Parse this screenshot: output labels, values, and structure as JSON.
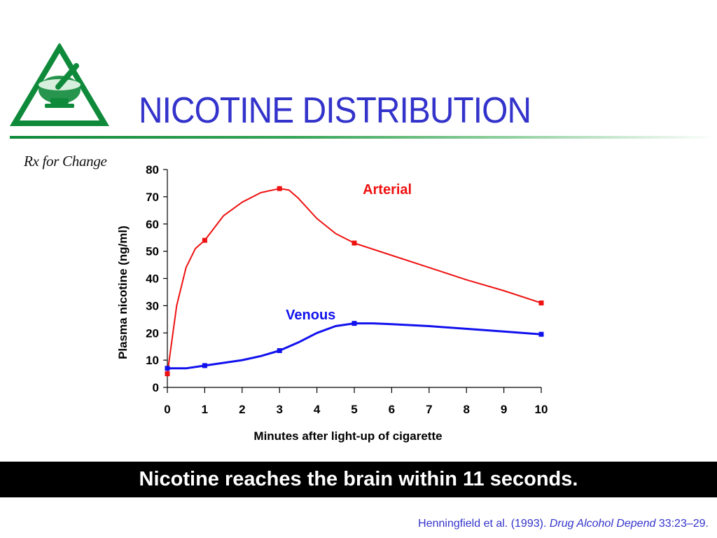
{
  "slide": {
    "title": "NICOTINE DISTRIBUTION",
    "logo_text": "Rx for Change",
    "banner": "Nicotine reaches the brain within 11 seconds.",
    "citation": {
      "authors": "Henningfield et al. (1993).",
      "journal": "Drug Alcohol Depend",
      "pages": "33:23–29."
    },
    "colors": {
      "title": "#3333cc",
      "rule": "#0f8a3a",
      "banner_bg": "#000000"
    }
  },
  "chart_data": {
    "type": "line",
    "xlabel": "Minutes after light-up of cigarette",
    "ylabel": "Plasma nicotine (ng/ml)",
    "xlim": [
      0,
      10
    ],
    "ylim": [
      0,
      80
    ],
    "xticks": [
      0,
      1,
      2,
      3,
      4,
      5,
      6,
      7,
      8,
      9,
      10
    ],
    "yticks": [
      0,
      10,
      20,
      30,
      40,
      50,
      60,
      70,
      80
    ],
    "grid": false,
    "legend": "inline labels",
    "series": [
      {
        "name": "Arterial",
        "color": "#ee1111",
        "x": [
          0,
          1,
          3,
          5,
          10
        ],
        "y": [
          5,
          54,
          73,
          53,
          31
        ],
        "curve_x": [
          0,
          0.25,
          0.5,
          0.75,
          1,
          1.5,
          2,
          2.5,
          3,
          3.25,
          3.5,
          4,
          4.5,
          5,
          6,
          7,
          8,
          9,
          10
        ],
        "curve_y": [
          5,
          30,
          44,
          51,
          54,
          63,
          68,
          71.5,
          73,
          72.5,
          69.5,
          62,
          56.5,
          53,
          48.5,
          44,
          39.5,
          35.5,
          31
        ]
      },
      {
        "name": "Venous",
        "color": "#1111ee",
        "x": [
          0,
          1,
          3,
          5,
          10
        ],
        "y": [
          7,
          8,
          13.5,
          23.5,
          19.5
        ],
        "curve_x": [
          0,
          0.5,
          1,
          1.5,
          2,
          2.5,
          3,
          3.5,
          4,
          4.5,
          5,
          5.5,
          6,
          7,
          8,
          9,
          10
        ],
        "curve_y": [
          7,
          7,
          8,
          9,
          10,
          11.5,
          13.5,
          16.5,
          20,
          22.5,
          23.5,
          23.5,
          23.2,
          22.5,
          21.5,
          20.5,
          19.5
        ]
      }
    ]
  }
}
